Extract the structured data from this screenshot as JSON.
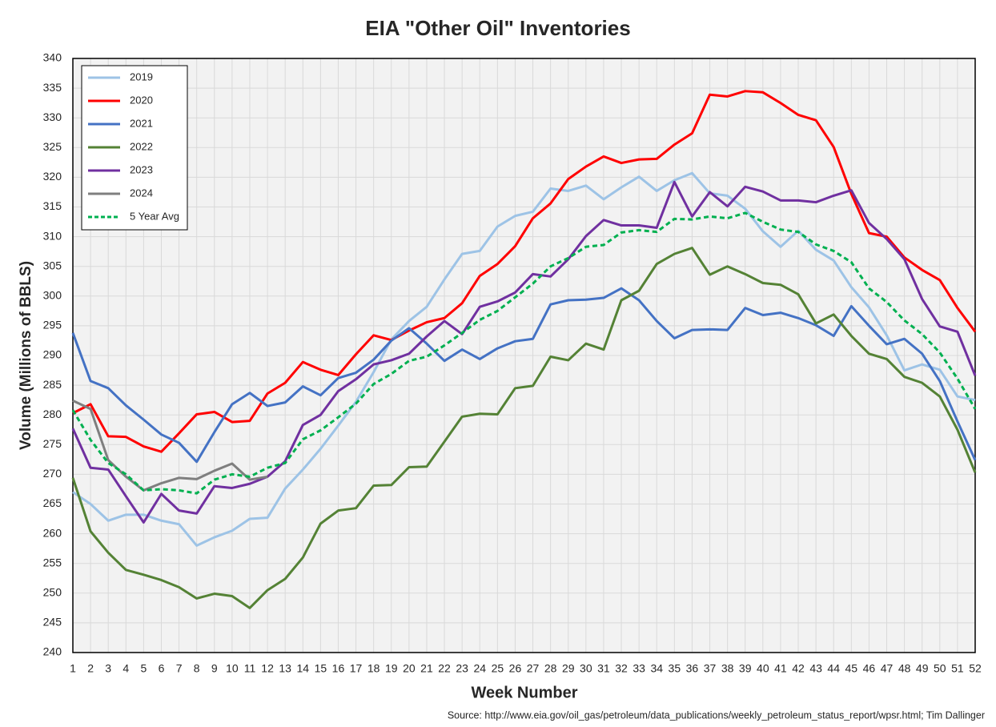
{
  "chart_data": {
    "type": "line",
    "title": "EIA \"Other Oil\" Inventories",
    "x_label": "Week Number",
    "y_label": "Volume (Millions of BBLS)",
    "source": "Source: http://www.eia.gov/oil_gas/petroleum/data_publications/weekly_petroleum_status_report/wpsr.html; Tim Dallinger",
    "x": [
      1,
      2,
      3,
      4,
      5,
      6,
      7,
      8,
      9,
      10,
      11,
      12,
      13,
      14,
      15,
      16,
      17,
      18,
      19,
      20,
      21,
      22,
      23,
      24,
      25,
      26,
      27,
      28,
      29,
      30,
      31,
      32,
      33,
      34,
      35,
      36,
      37,
      38,
      39,
      40,
      41,
      42,
      43,
      44,
      45,
      46,
      47,
      48,
      49,
      50,
      51,
      52
    ],
    "xlim": [
      1,
      52
    ],
    "xticks": [
      1,
      2,
      3,
      4,
      5,
      6,
      7,
      8,
      9,
      10,
      11,
      12,
      13,
      14,
      15,
      16,
      17,
      18,
      19,
      20,
      21,
      22,
      23,
      24,
      25,
      26,
      27,
      28,
      29,
      30,
      31,
      32,
      33,
      34,
      35,
      36,
      37,
      38,
      39,
      40,
      41,
      42,
      43,
      44,
      45,
      46,
      47,
      48,
      49,
      50,
      51,
      52
    ],
    "ylim": [
      240,
      340
    ],
    "yticks": [
      240,
      245,
      250,
      255,
      260,
      265,
      270,
      275,
      280,
      285,
      290,
      295,
      300,
      305,
      310,
      315,
      320,
      325,
      330,
      335,
      340
    ],
    "grid": true,
    "legend": "upper left",
    "series": [
      {
        "name": "2019",
        "color": "#9dc3e6",
        "dashed": false,
        "values": [
          267,
          265,
          262.2,
          263.2,
          263.2,
          262.2,
          261.6,
          258,
          259.4,
          260.5,
          262.5,
          262.7,
          267.6,
          270.8,
          274.3,
          278.2,
          282.2,
          287.2,
          292.7,
          295.8,
          298.2,
          302.8,
          307.1,
          307.6,
          311.7,
          313.5,
          314.2,
          318.1,
          317.7,
          318.6,
          316.3,
          318.3,
          320.1,
          317.7,
          319.5,
          320.7,
          317.3,
          316.9,
          314.7,
          310.9,
          308.3,
          311,
          307.8,
          306,
          301.5,
          298.1,
          293.4,
          287.5,
          288.5,
          287.6,
          283.1,
          282.5
        ]
      },
      {
        "name": "2020",
        "color": "#ff0000",
        "dashed": false,
        "values": [
          280.3,
          281.8,
          276.4,
          276.3,
          274.7,
          273.8,
          276.9,
          280.1,
          280.5,
          278.8,
          279,
          283.6,
          285.4,
          288.9,
          287.6,
          286.7,
          290.2,
          293.4,
          292.6,
          294.2,
          295.6,
          296.3,
          298.8,
          303.4,
          305.4,
          308.4,
          313.1,
          315.6,
          319.7,
          321.8,
          323.5,
          322.4,
          323,
          323.1,
          325.5,
          327.4,
          333.9,
          333.6,
          334.5,
          334.3,
          332.5,
          330.5,
          329.6,
          325.1,
          317.2,
          310.6,
          310,
          306.5,
          304.4,
          302.7,
          298,
          294
        ]
      },
      {
        "name": "2021",
        "color": "#4472c4",
        "dashed": false,
        "values": [
          293.8,
          285.7,
          284.5,
          281.6,
          279.2,
          276.7,
          275.3,
          272.1,
          277.1,
          281.8,
          283.7,
          281.5,
          282.1,
          284.8,
          283.3,
          286.2,
          287.1,
          289.3,
          292.5,
          294.6,
          292,
          289.1,
          291,
          289.4,
          291.2,
          292.4,
          292.8,
          298.6,
          299.3,
          299.4,
          299.7,
          301.3,
          299.3,
          295.8,
          292.9,
          294.3,
          294.4,
          294.3,
          298,
          296.8,
          297.2,
          296.3,
          295.1,
          293.3,
          298.3,
          295,
          291.9,
          292.8,
          290.3,
          285.7,
          278.9,
          272.4
        ]
      },
      {
        "name": "2022",
        "color": "#548235",
        "dashed": false,
        "values": [
          269.4,
          260.4,
          256.8,
          253.9,
          253.1,
          252.2,
          251,
          249.1,
          249.9,
          249.5,
          247.5,
          250.5,
          252.4,
          256,
          261.7,
          263.9,
          264.3,
          268.1,
          268.2,
          271.2,
          271.3,
          275.5,
          279.7,
          280.2,
          280.1,
          284.5,
          284.9,
          289.8,
          289.2,
          292,
          291,
          299.3,
          300.9,
          305.4,
          307.1,
          308.1,
          303.6,
          305,
          303.7,
          302.2,
          301.9,
          300.3,
          295.4,
          296.9,
          293.3,
          290.3,
          289.4,
          286.4,
          285.4,
          283.1,
          277.5,
          270.3
        ]
      },
      {
        "name": "2023",
        "color": "#7030a0",
        "dashed": false,
        "values": [
          277.7,
          271.1,
          270.8,
          266.3,
          261.9,
          266.7,
          263.9,
          263.4,
          268,
          267.7,
          268.4,
          269.6,
          272.2,
          278.3,
          280,
          284,
          286,
          288.5,
          289.2,
          290.3,
          293.2,
          295.8,
          293.6,
          298.2,
          299.1,
          300.6,
          303.7,
          303.3,
          306.2,
          310.1,
          312.8,
          311.9,
          311.9,
          311.5,
          319.2,
          313.4,
          317.5,
          315.1,
          318.4,
          317.6,
          316.1,
          316.1,
          315.8,
          316.9,
          317.8,
          312.3,
          309.6,
          306.2,
          299.5,
          294.9,
          294,
          286.6
        ]
      },
      {
        "name": "2024",
        "color": "#7f7f7f",
        "dashed": false,
        "values": [
          282.4,
          281,
          272.4,
          269.6,
          267.3,
          268.5,
          269.4,
          269.2,
          270.6,
          271.8,
          269.1,
          269.6,
          null,
          null,
          null,
          null,
          null,
          null,
          null,
          null,
          null,
          null,
          null,
          null,
          null,
          null,
          null,
          null,
          null,
          null,
          null,
          null,
          null,
          null,
          null,
          null,
          null,
          null,
          null,
          null,
          null,
          null,
          null,
          null,
          null,
          null,
          null,
          null,
          null,
          null,
          null,
          null
        ]
      },
      {
        "name": "5 Year Avg",
        "color": "#00b050",
        "dashed": true,
        "values": [
          280.8,
          275.8,
          271.9,
          270,
          267.3,
          267.5,
          267.3,
          266.8,
          269.1,
          270,
          269.6,
          271.1,
          271.9,
          275.9,
          277.4,
          279.6,
          281.9,
          285.2,
          286.9,
          289.1,
          289.8,
          291.7,
          293.8,
          296,
          297.5,
          299.8,
          302.1,
          305,
          306.4,
          308.3,
          308.6,
          310.7,
          311.1,
          310.8,
          313,
          312.9,
          313.4,
          313.1,
          314,
          312.5,
          311.2,
          310.8,
          308.7,
          307.6,
          305.7,
          301.3,
          299,
          295.9,
          293.6,
          290.5,
          286.1,
          281
        ]
      }
    ]
  }
}
